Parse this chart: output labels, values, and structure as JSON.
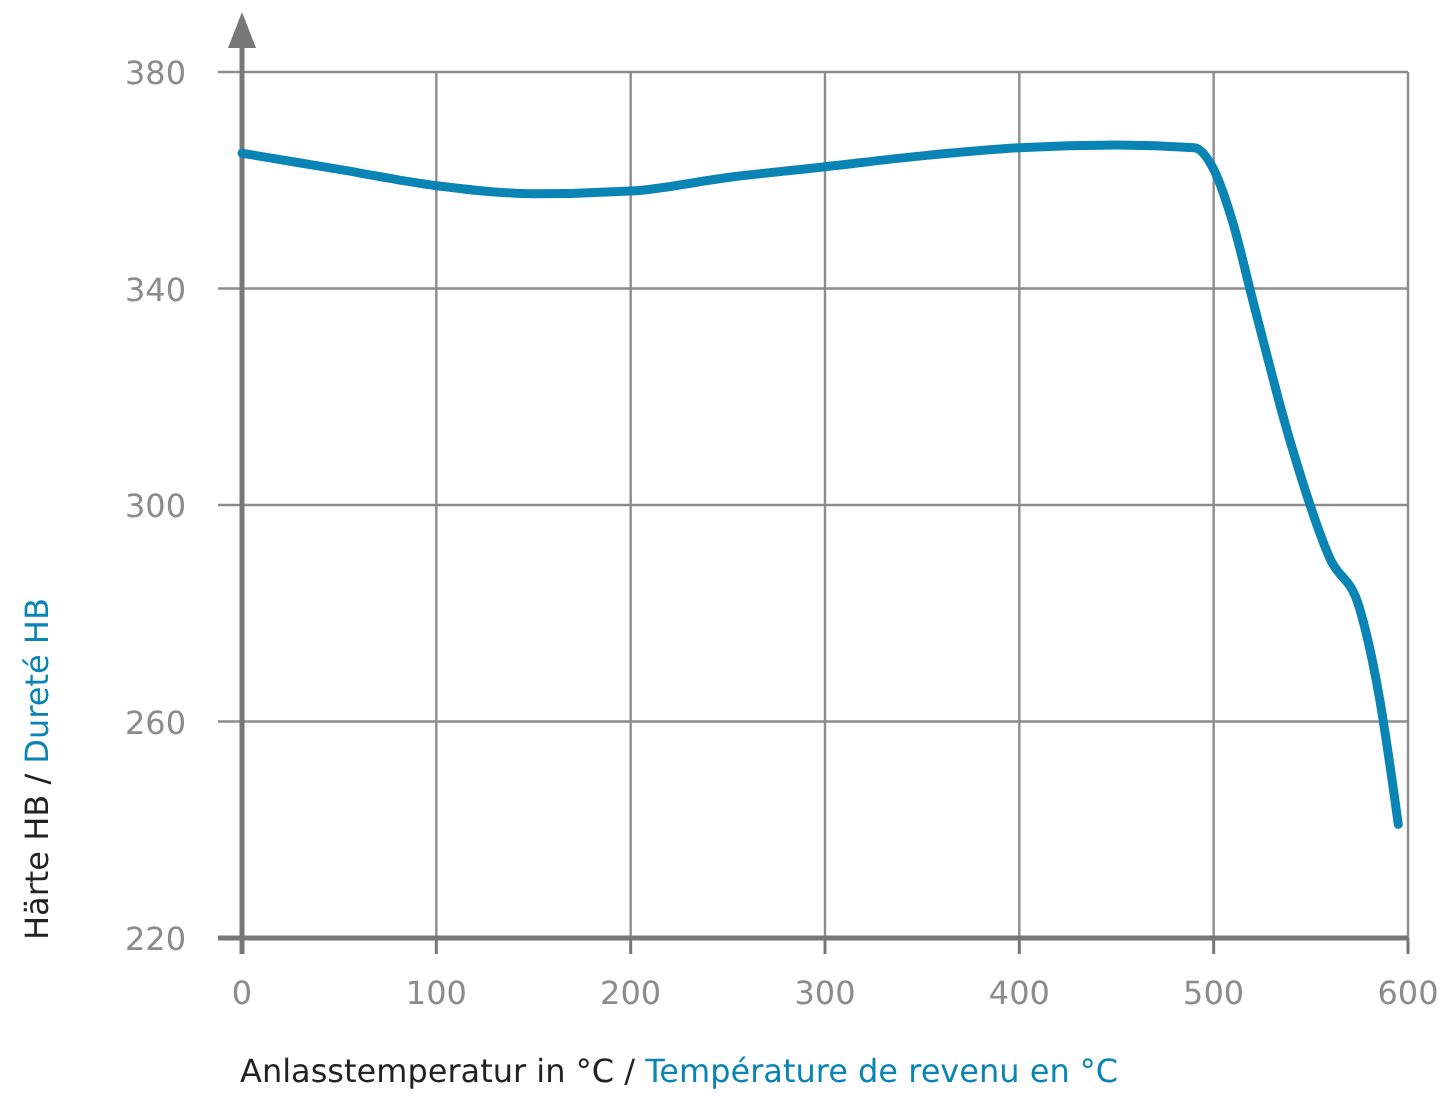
{
  "chart_data": {
    "type": "line",
    "xlabel": "Anlasstemperatur in °C / Température de revenu en °C",
    "ylabel": "Härte HB / Dureté HB",
    "x": [
      0,
      50,
      100,
      150,
      200,
      250,
      300,
      350,
      400,
      450,
      490,
      500,
      510,
      520,
      540,
      560,
      575,
      585,
      595
    ],
    "series": [
      {
        "color": "#0a84b4",
        "values": [
          365,
          362,
          359,
          357.5,
          358,
          360.5,
          362.5,
          364.5,
          366,
          366.5,
          366,
          362,
          352,
          338,
          311,
          290,
          281,
          265,
          241
        ]
      }
    ],
    "xlim": [
      0,
      600
    ],
    "xticks": [
      0,
      100,
      200,
      300,
      400,
      500,
      600
    ],
    "ylim": [
      220,
      380
    ],
    "yticks": [
      220,
      260,
      300,
      340,
      380
    ],
    "grid": true,
    "marker": "none",
    "line_style": "solid"
  }
}
